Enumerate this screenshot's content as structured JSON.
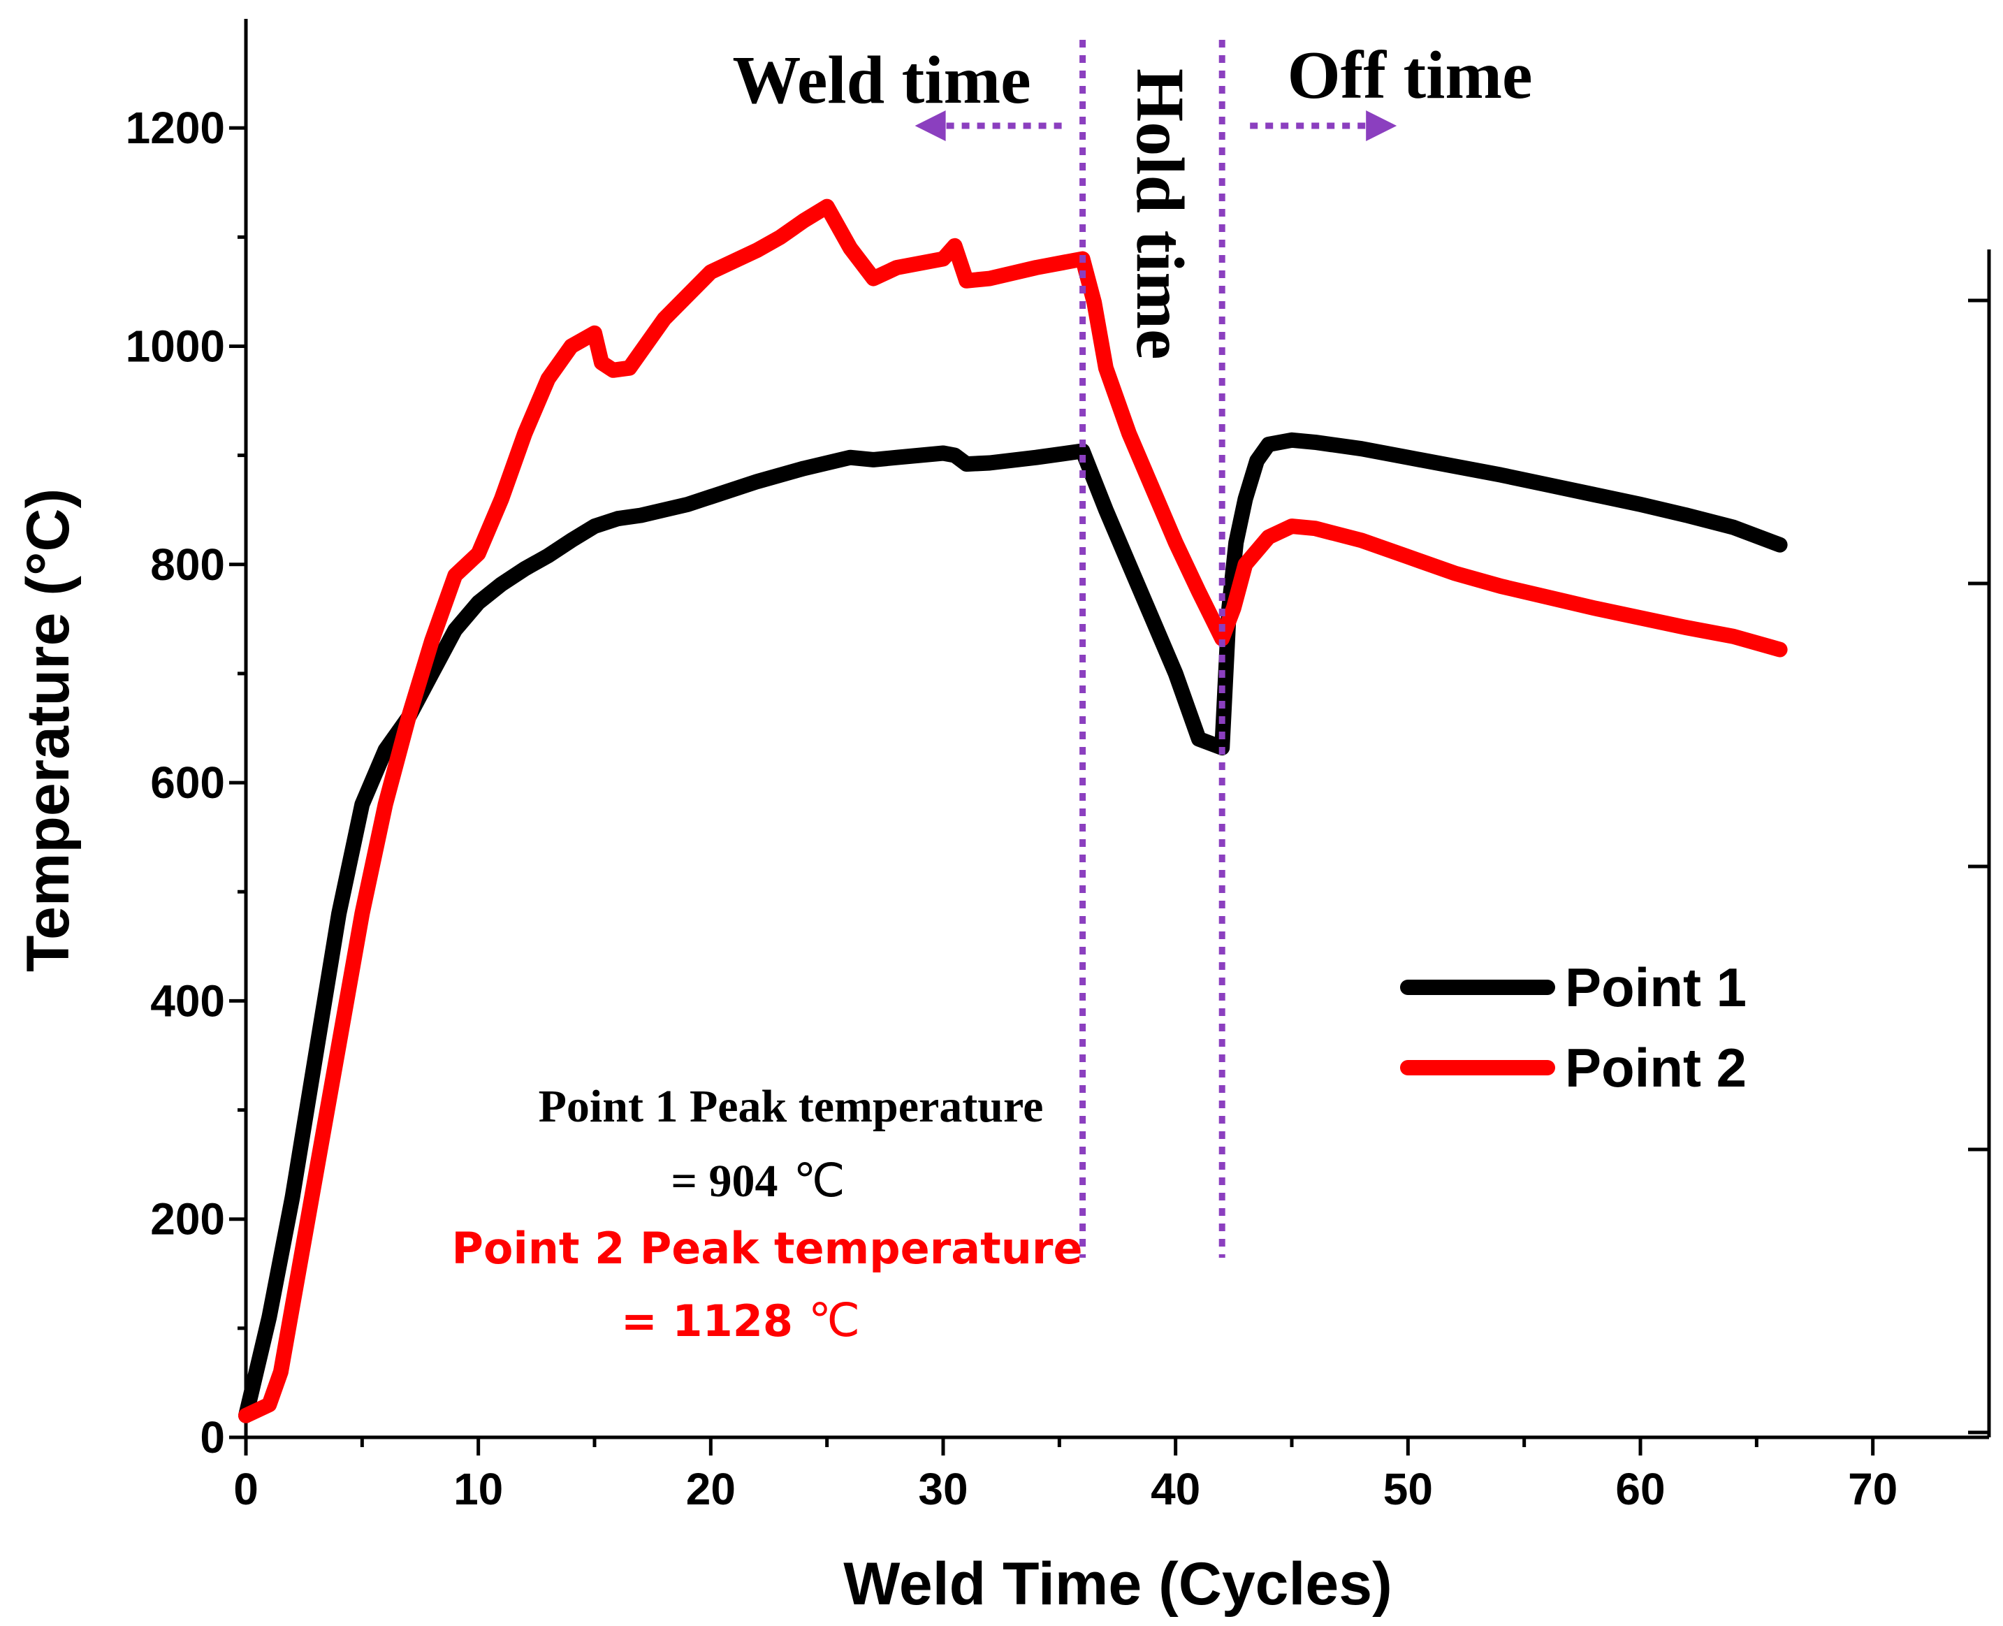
{
  "chart_data": {
    "type": "line",
    "xlabel": "Weld Time (Cycles)",
    "ylabel": "Temperature (°C)",
    "xlim": [
      0,
      75
    ],
    "ylim": [
      0,
      1300
    ],
    "xticks": [
      0,
      10,
      20,
      30,
      40,
      50,
      60,
      70
    ],
    "yticks": [
      0,
      200,
      400,
      600,
      800,
      1000,
      1200
    ],
    "legend": {
      "position": "center-right"
    },
    "colors": {
      "point1": "#000000",
      "point2": "#ff0000",
      "phase": "#8b3fbf"
    },
    "series": [
      {
        "name": "Point 1",
        "color": "#000000",
        "x": [
          0,
          1,
          2,
          3,
          4,
          5,
          6,
          7,
          8,
          9,
          10,
          11,
          12,
          13,
          14,
          15,
          16,
          17,
          18,
          19,
          20,
          22,
          24,
          26,
          27,
          28,
          30,
          30.5,
          31,
          32,
          34,
          36,
          37,
          38,
          39,
          40,
          41,
          42,
          42.3,
          42.6,
          43,
          43.5,
          44,
          45,
          46,
          48,
          50,
          52,
          54,
          56,
          58,
          60,
          62,
          64,
          66
        ],
        "y": [
          20,
          110,
          220,
          350,
          480,
          580,
          630,
          660,
          700,
          740,
          765,
          782,
          796,
          808,
          822,
          835,
          842,
          845,
          850,
          855,
          862,
          876,
          888,
          898,
          896,
          898,
          902,
          900,
          892,
          893,
          898,
          904,
          850,
          800,
          750,
          700,
          640,
          632,
          760,
          820,
          860,
          895,
          910,
          914,
          912,
          906,
          898,
          890,
          882,
          873,
          864,
          855,
          845,
          834,
          818
        ]
      },
      {
        "name": "Point 2",
        "color": "#ff0000",
        "x": [
          0,
          1,
          1.5,
          2,
          3,
          4,
          5,
          6,
          7,
          8,
          9,
          10,
          11,
          12,
          13,
          14,
          15,
          15.3,
          15.8,
          16.5,
          18,
          20,
          22,
          23,
          24,
          25,
          26,
          27,
          28,
          30,
          30.5,
          31,
          32,
          34,
          36,
          36.5,
          37,
          38,
          39,
          40,
          41,
          42,
          42.5,
          43,
          44,
          45,
          46,
          48,
          50,
          52,
          54,
          56,
          58,
          60,
          62,
          64,
          66
        ],
        "y": [
          20,
          30,
          60,
          120,
          240,
          360,
          480,
          580,
          660,
          730,
          790,
          810,
          860,
          920,
          970,
          1000,
          1012,
          985,
          978,
          980,
          1025,
          1068,
          1088,
          1100,
          1115,
          1128,
          1090,
          1062,
          1072,
          1080,
          1092,
          1060,
          1062,
          1072,
          1080,
          1040,
          980,
          920,
          870,
          820,
          775,
          732,
          760,
          800,
          825,
          835,
          833,
          822,
          807,
          792,
          780,
          770,
          760,
          751,
          742,
          734,
          722
        ]
      }
    ],
    "phase_lines_x": [
      36,
      42
    ],
    "phases": [
      {
        "label": "Weld time",
        "arrow_direction": "left"
      },
      {
        "label": "Hold time"
      },
      {
        "label": "Off time",
        "arrow_direction": "right"
      }
    ],
    "annotations": {
      "point1_line1": "Point 1 Peak temperature",
      "point1_line2": "= 904",
      "point2_line1": "Point 2 Peak temperature",
      "point2_line2": "= 1128",
      "unit": "℃"
    }
  }
}
